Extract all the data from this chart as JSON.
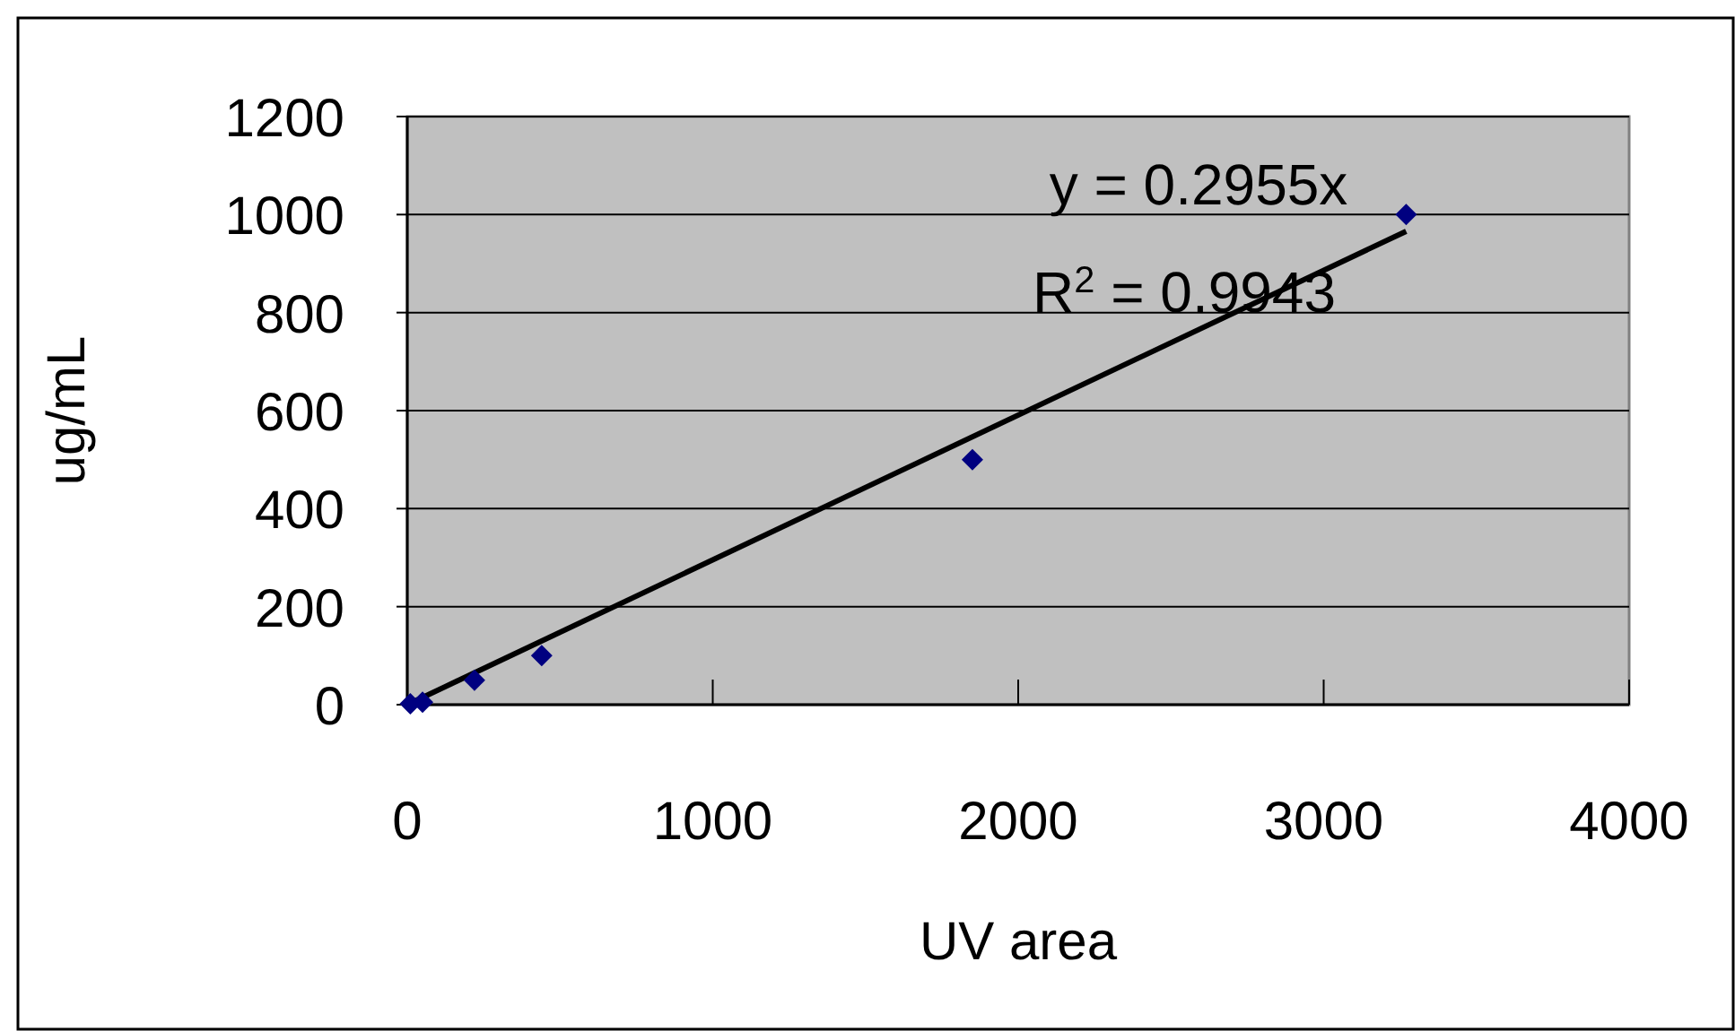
{
  "chart_data": {
    "type": "scatter",
    "xlabel": "UV area",
    "ylabel": "ug/mL",
    "xlim": [
      0,
      4000
    ],
    "xticks": [
      0,
      1000,
      2000,
      3000,
      4000
    ],
    "ylim": [
      0,
      1200
    ],
    "yticks": [
      0,
      200,
      400,
      600,
      800,
      1000,
      1200
    ],
    "grid": "y",
    "marker": "diamond",
    "series": [
      {
        "color": "#000080",
        "x": [
          10,
          50,
          220,
          440,
          1850,
          3270
        ],
        "values": [
          2,
          5,
          50,
          100,
          500,
          1000
        ]
      },
      {
        "type": "line",
        "color": "#000000",
        "marker": "none",
        "line_style": "solid",
        "x": [
          0,
          3270
        ],
        "values": [
          0,
          966
        ]
      }
    ],
    "annotations": [
      "y = 0.2955x",
      "R$^{2}$ = 0.9943"
    ]
  }
}
